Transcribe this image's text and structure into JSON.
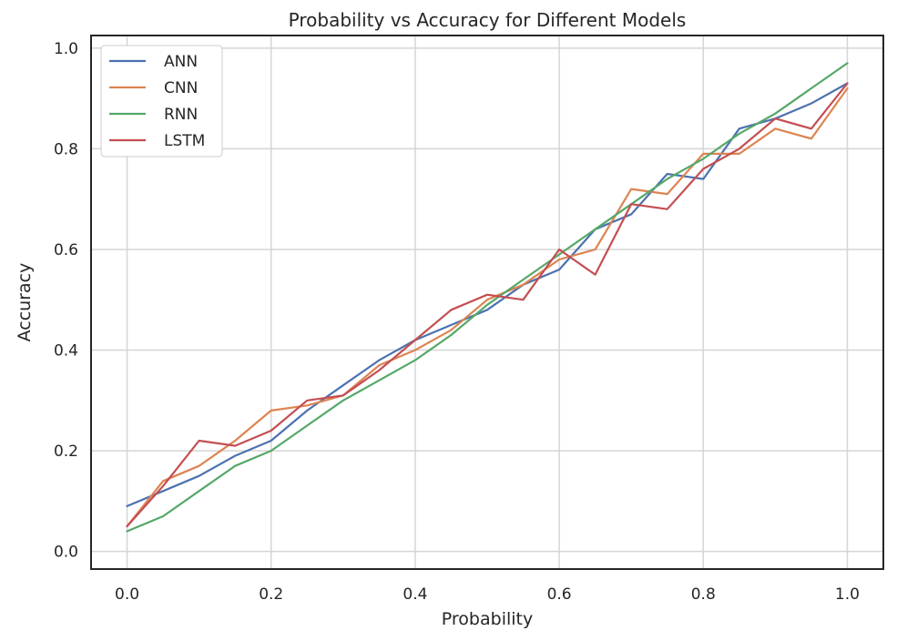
{
  "chart_data": {
    "type": "line",
    "title": "Probability vs Accuracy for Different Models",
    "xlabel": "Probability",
    "ylabel": "Accuracy",
    "xlim": [
      -0.05,
      1.05
    ],
    "ylim": [
      -0.035,
      1.025
    ],
    "xticks": [
      0.0,
      0.2,
      0.4,
      0.6,
      0.8,
      1.0
    ],
    "yticks": [
      0.0,
      0.2,
      0.4,
      0.6,
      0.8,
      1.0
    ],
    "xtick_labels": [
      "0.0",
      "0.2",
      "0.4",
      "0.6",
      "0.8",
      "1.0"
    ],
    "ytick_labels": [
      "0.0",
      "0.2",
      "0.4",
      "0.6",
      "0.8",
      "1.0"
    ],
    "grid": true,
    "legend_position": "top-left",
    "x": [
      0.0,
      0.05,
      0.1,
      0.15,
      0.2,
      0.25,
      0.3,
      0.35,
      0.4,
      0.45,
      0.5,
      0.55,
      0.6,
      0.65,
      0.7,
      0.75,
      0.8,
      0.85,
      0.9,
      0.95,
      1.0
    ],
    "series": [
      {
        "name": "ANN",
        "color": "#4c72b0",
        "values": [
          0.09,
          0.12,
          0.15,
          0.19,
          0.22,
          0.28,
          0.33,
          0.38,
          0.42,
          0.45,
          0.48,
          0.53,
          0.56,
          0.64,
          0.67,
          0.75,
          0.74,
          0.84,
          0.86,
          0.89,
          0.93
        ]
      },
      {
        "name": "CNN",
        "color": "#dd8452",
        "values": [
          0.05,
          0.14,
          0.17,
          0.22,
          0.28,
          0.29,
          0.31,
          0.37,
          0.4,
          0.44,
          0.5,
          0.53,
          0.58,
          0.6,
          0.72,
          0.71,
          0.79,
          0.79,
          0.84,
          0.82,
          0.92
        ]
      },
      {
        "name": "RNN",
        "color": "#55a868",
        "values": [
          0.04,
          0.07,
          0.12,
          0.17,
          0.2,
          0.25,
          0.3,
          0.34,
          0.38,
          0.43,
          0.49,
          0.54,
          0.59,
          0.64,
          0.69,
          0.74,
          0.78,
          0.83,
          0.87,
          0.92,
          0.97
        ]
      },
      {
        "name": "LSTM",
        "color": "#c44e52",
        "values": [
          0.05,
          0.13,
          0.22,
          0.21,
          0.24,
          0.3,
          0.31,
          0.36,
          0.42,
          0.48,
          0.51,
          0.5,
          0.6,
          0.55,
          0.69,
          0.68,
          0.76,
          0.8,
          0.86,
          0.84,
          0.93
        ]
      }
    ]
  }
}
